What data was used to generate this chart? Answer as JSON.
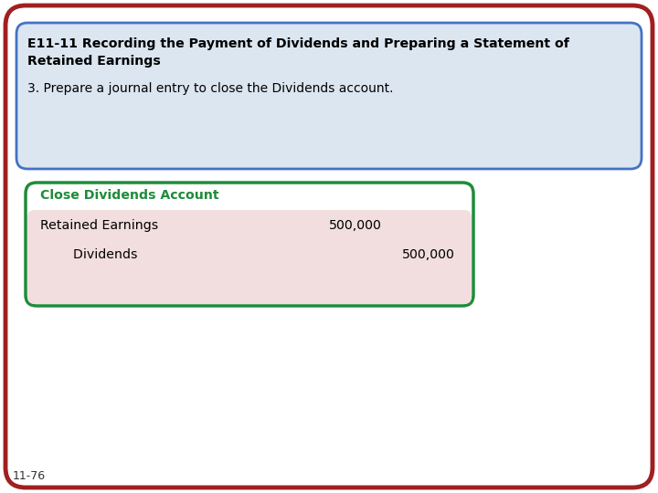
{
  "title_bold_line1": "E11-11 Recording the Payment of Dividends and Preparing a Statement of",
  "title_bold_line2": "Retained Earnings",
  "subtitle": "3. Prepare a journal entry to close the Dividends account.",
  "header_bg": "#dce6f1",
  "header_border": "#4472c4",
  "outer_border": "#a02020",
  "slide_bg": "#ffffff",
  "table_header": "Close Dividends Account",
  "table_header_color": "#1e8c3a",
  "table_border": "#1e8c3a",
  "table_bg": "#f2dede",
  "row1_label": "Retained Earnings",
  "row1_debit": "500,000",
  "row2_label": "    Dividends",
  "row2_credit": "500,000",
  "footer": "11-76",
  "footer_color": "#333333"
}
